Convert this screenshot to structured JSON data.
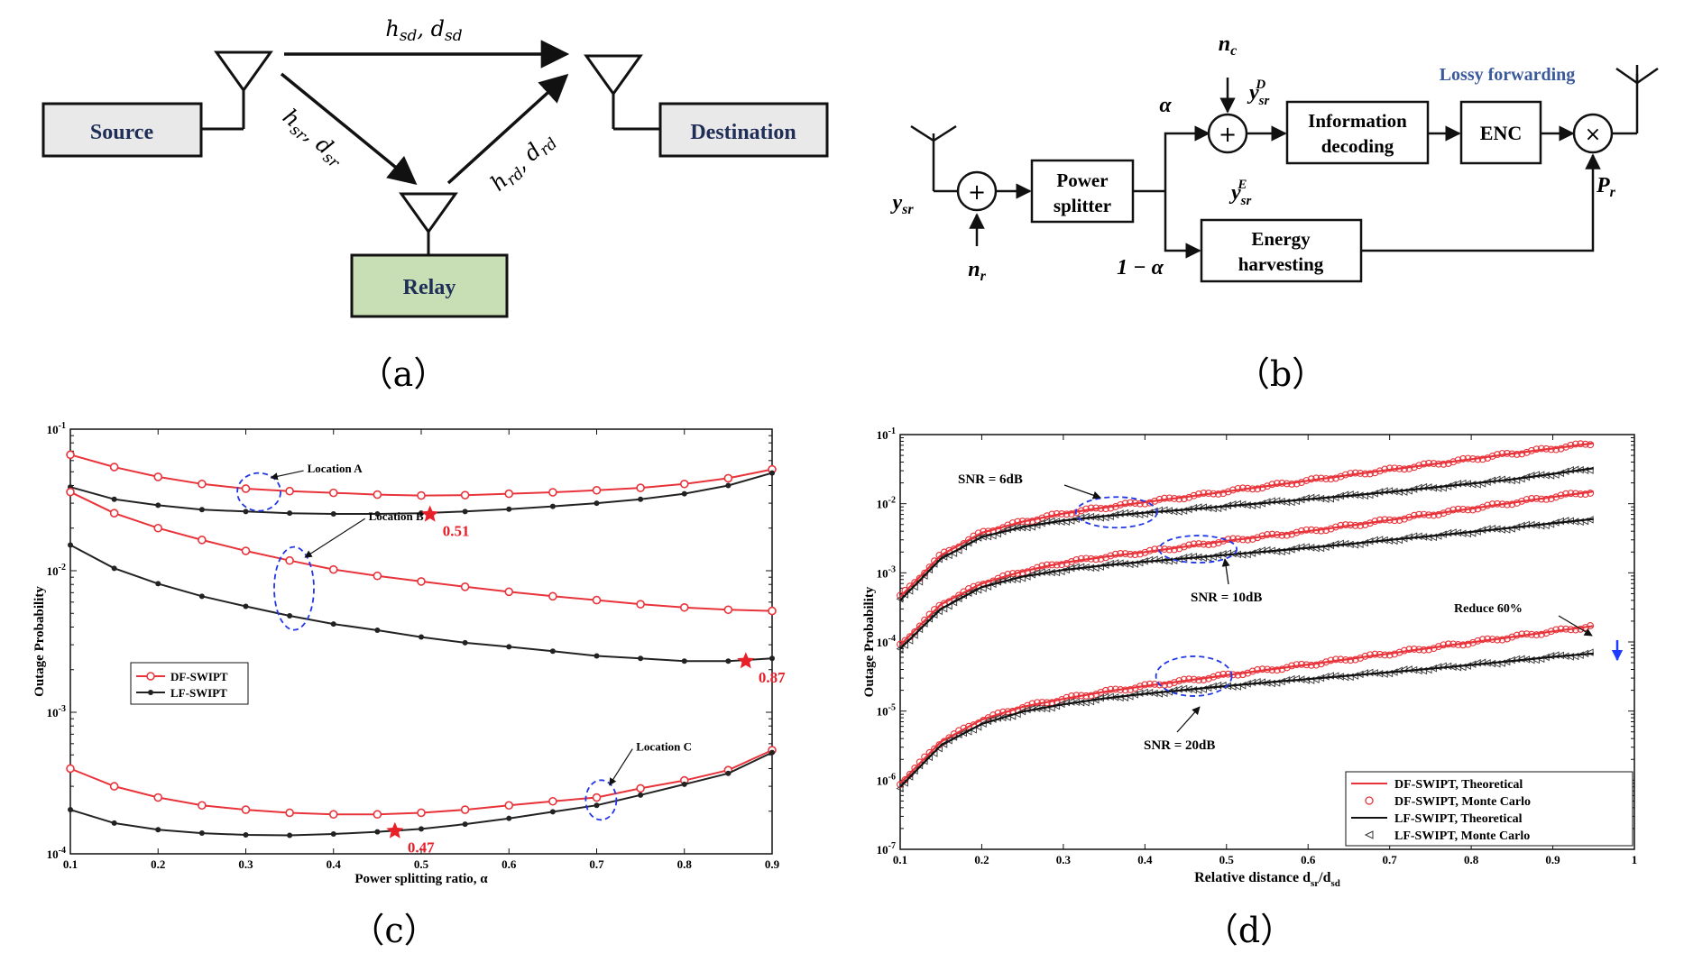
{
  "panel_a": {
    "label": "（a）",
    "source_label": "Source",
    "destination_label": "Destination",
    "relay_label": "Relay",
    "link_sd": "h_sd, d_sd",
    "link_sr": "h_sr, d_sr",
    "link_rd": "h_rd, d_rd"
  },
  "panel_b": {
    "label": "（b）",
    "nc_label": "n_c",
    "nr_label": "n_r",
    "ysr_label": "y_sr",
    "ysrD_label": "y_sr^D",
    "ysrE_label": "y_sr^E",
    "alpha_label": "α",
    "one_minus_alpha_label": "1 − α",
    "power_splitter": [
      "Power",
      "splitter"
    ],
    "information_decoding": [
      "Information",
      "decoding"
    ],
    "enc_label": "ENC",
    "energy_harvesting": [
      "Energy",
      "harvesting"
    ],
    "pr_label": "P_r",
    "lossy_forwarding_label": "Lossy forwarding",
    "colors": {
      "lossy_forwarding": "#3a5a9c",
      "source_fill": "#eaeaea",
      "relay_fill": "#c9dfb8"
    }
  },
  "chart_data": [
    {
      "type": "line",
      "panel_label": "（c）",
      "xlabel": "Power splitting ratio, α",
      "ylabel": "Outage Probability",
      "y_scale": "log",
      "xlim": [
        0.1,
        0.9
      ],
      "ylim": [
        0.0001,
        0.1
      ],
      "xticks": [
        "0.1",
        "0.2",
        "0.3",
        "0.4",
        "0.5",
        "0.6",
        "0.7",
        "0.8",
        "0.9"
      ],
      "yticks": [
        {
          "base": "10",
          "exp": "-1"
        },
        {
          "base": "10",
          "exp": "-2"
        },
        {
          "base": "10",
          "exp": "-3"
        },
        {
          "base": "10",
          "exp": "-4"
        }
      ],
      "x": [
        0.1,
        0.15,
        0.2,
        0.25,
        0.3,
        0.35,
        0.4,
        0.45,
        0.5,
        0.55,
        0.6,
        0.65,
        0.7,
        0.75,
        0.8,
        0.85,
        0.9
      ],
      "series": [
        {
          "name": "DF-SWIPT",
          "color": "#e8333a",
          "marker": "circle",
          "values": [
            0.066,
            0.054,
            0.046,
            0.041,
            0.038,
            0.0365,
            0.0355,
            0.0345,
            0.034,
            0.0342,
            0.035,
            0.0358,
            0.037,
            0.0385,
            0.041,
            0.045,
            0.052
          ]
        },
        {
          "name": "LF-SWIPT",
          "color": "#222222",
          "marker": "dot",
          "values": [
            0.039,
            0.032,
            0.029,
            0.027,
            0.0262,
            0.0255,
            0.0252,
            0.0252,
            0.0255,
            0.0262,
            0.0272,
            0.0285,
            0.03,
            0.032,
            0.035,
            0.04,
            0.049
          ]
        },
        {
          "name": "DF-SWIPT",
          "color": "#e8333a",
          "marker": "circle",
          "values": [
            0.036,
            0.0255,
            0.02,
            0.0165,
            0.0138,
            0.0118,
            0.0102,
            0.0092,
            0.0084,
            0.0077,
            0.0071,
            0.0066,
            0.0062,
            0.0058,
            0.0055,
            0.0053,
            0.0052
          ]
        },
        {
          "name": "LF-SWIPT",
          "color": "#222222",
          "marker": "dot",
          "values": [
            0.0152,
            0.0104,
            0.0081,
            0.0066,
            0.0056,
            0.0048,
            0.0042,
            0.0038,
            0.0034,
            0.0031,
            0.0029,
            0.0027,
            0.0025,
            0.0024,
            0.0023,
            0.0023,
            0.0024
          ]
        },
        {
          "name": "DF-SWIPT",
          "color": "#e8333a",
          "marker": "circle",
          "values": [
            0.0004,
            0.0003,
            0.00025,
            0.00022,
            0.000205,
            0.000195,
            0.00019,
            0.00019,
            0.000195,
            0.000205,
            0.00022,
            0.000235,
            0.00025,
            0.00029,
            0.00033,
            0.00039,
            0.00054
          ]
        },
        {
          "name": "LF-SWIPT",
          "color": "#222222",
          "marker": "dot",
          "values": [
            0.000205,
            0.000165,
            0.000148,
            0.00014,
            0.000136,
            0.000135,
            0.000138,
            0.000143,
            0.00015,
            0.000162,
            0.000178,
            0.000198,
            0.00022,
            0.00026,
            0.00031,
            0.00037,
            0.00052
          ]
        }
      ],
      "legend": {
        "placement": "middle-left",
        "entries": [
          "DF-SWIPT",
          "LF-SWIPT"
        ]
      },
      "annotations": [
        {
          "text": "Location A",
          "color": "#222222"
        },
        {
          "text": "Location B",
          "color": "#222222"
        },
        {
          "text": "Location C",
          "color": "#222222"
        }
      ],
      "optimal_points": [
        {
          "alpha": 0.51,
          "value": 0.025,
          "label": "0.51"
        },
        {
          "alpha": 0.87,
          "value": 0.0023,
          "label": "0.87"
        },
        {
          "alpha": 0.47,
          "value": 0.000145,
          "label": "0.47"
        }
      ],
      "grid": false
    },
    {
      "type": "line",
      "panel_label": "（d）",
      "xlabel": "Relative distance d",
      "xlabel_sub1": "sr",
      "xlabel_mid": "/d",
      "xlabel_sub2": "sd",
      "ylabel": "Outage Probability",
      "y_scale": "log",
      "xlim": [
        0.1,
        1.0
      ],
      "ylim": [
        1e-07,
        0.1
      ],
      "xticks": [
        "0.1",
        "0.2",
        "0.3",
        "0.4",
        "0.5",
        "0.6",
        "0.7",
        "0.8",
        "0.9",
        "1"
      ],
      "yticks": [
        {
          "base": "10",
          "exp": "-1"
        },
        {
          "base": "10",
          "exp": "-2"
        },
        {
          "base": "10",
          "exp": "-3"
        },
        {
          "base": "10",
          "exp": "-4"
        },
        {
          "base": "10",
          "exp": "-5"
        },
        {
          "base": "10",
          "exp": "-6"
        },
        {
          "base": "10",
          "exp": "-7"
        }
      ],
      "x": [
        0.1,
        0.15,
        0.2,
        0.25,
        0.3,
        0.35,
        0.4,
        0.45,
        0.5,
        0.55,
        0.6,
        0.65,
        0.7,
        0.75,
        0.8,
        0.85,
        0.9,
        0.95
      ],
      "series": [
        {
          "name": "DF-SWIPT, Theoretical",
          "group": "SNR = 6dB",
          "color": "#e8333a",
          "values": [
            0.00045,
            0.0018,
            0.0038,
            0.0055,
            0.0072,
            0.0088,
            0.0105,
            0.0125,
            0.015,
            0.018,
            0.0215,
            0.026,
            0.031,
            0.037,
            0.044,
            0.053,
            0.063,
            0.075
          ]
        },
        {
          "name": "LF-SWIPT, Theoretical",
          "group": "SNR = 6dB",
          "color": "#111111",
          "values": [
            0.0004,
            0.0016,
            0.0033,
            0.0046,
            0.0057,
            0.0066,
            0.0074,
            0.0082,
            0.0092,
            0.0103,
            0.0116,
            0.013,
            0.0148,
            0.017,
            0.0195,
            0.0225,
            0.027,
            0.0325
          ]
        },
        {
          "name": "DF-SWIPT, Theoretical",
          "group": "SNR = 10dB",
          "color": "#e8333a",
          "values": [
            9e-05,
            0.00035,
            0.0007,
            0.00105,
            0.0014,
            0.0017,
            0.002,
            0.0024,
            0.0029,
            0.0034,
            0.004,
            0.0048,
            0.0058,
            0.007,
            0.0085,
            0.0103,
            0.0125,
            0.015
          ]
        },
        {
          "name": "LF-SWIPT, Theoretical",
          "group": "SNR = 10dB",
          "color": "#111111",
          "values": [
            8e-05,
            0.0003,
            0.00062,
            0.00088,
            0.0011,
            0.00128,
            0.00145,
            0.00162,
            0.00182,
            0.00204,
            0.0023,
            0.0026,
            0.003,
            0.0034,
            0.0039,
            0.0045,
            0.0052,
            0.006
          ]
        },
        {
          "name": "DF-SWIPT, Theoretical",
          "group": "SNR = 20dB",
          "color": "#e8333a",
          "values": [
            9e-07,
            3.6e-06,
            7.5e-06,
            1.15e-05,
            1.5e-05,
            1.9e-05,
            2.3e-05,
            2.75e-05,
            3.3e-05,
            3.95e-05,
            4.7e-05,
            5.65e-05,
            6.8e-05,
            8.2e-05,
            9.85e-05,
            0.000118,
            0.000142,
            0.00017
          ]
        },
        {
          "name": "LF-SWIPT, Theoretical",
          "group": "SNR = 20dB",
          "color": "#111111",
          "values": [
            8e-07,
            3.2e-06,
            6.5e-06,
            9.8e-06,
            1.25e-05,
            1.52e-05,
            1.78e-05,
            2.03e-05,
            2.3e-05,
            2.6e-05,
            2.9e-05,
            3.25e-05,
            3.65e-05,
            4.1e-05,
            4.65e-05,
            5.3e-05,
            6.1e-05,
            6.8e-05
          ]
        }
      ],
      "legend": {
        "placement": "bottom-right",
        "entries": [
          "DF-SWIPT, Theoretical",
          "DF-SWIPT, Monte Carlo",
          "LF-SWIPT, Theoretical",
          "LF-SWIPT, Monte Carlo"
        ]
      },
      "annotations": [
        {
          "text": "SNR = 6dB"
        },
        {
          "text": "SNR = 10dB"
        },
        {
          "text": "SNR = 20dB"
        },
        {
          "text": "Reduce 60%"
        }
      ],
      "grid": false
    }
  ]
}
